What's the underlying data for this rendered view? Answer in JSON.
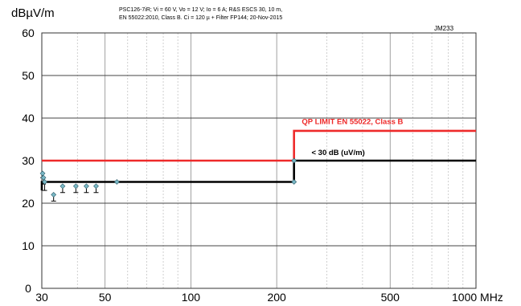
{
  "header": {
    "ylabel": "dBµV/m",
    "subtitle_line1": "PSC126-7iR; Vi = 60 V, Vo = 12 V; Io = 6 A; R&S ESCS 30, 10 m,",
    "subtitle_line2": "EN 55022:2010, Class B. Ci = 120 µ + Filter FP144; 20-Nov-2015",
    "reference": "JM233"
  },
  "chart_data": {
    "type": "scatter",
    "ylabel": "dBµV/m",
    "xlabel_unit": "MHz",
    "x_scale": "log",
    "xlim": [
      30,
      1000
    ],
    "ylim": [
      0,
      60
    ],
    "x_ticks": [
      30,
      50,
      100,
      200,
      500,
      1000
    ],
    "x_tick_labels": [
      "30",
      "50",
      "100",
      "200",
      "500",
      "1000 MHz"
    ],
    "y_ticks": [
      0,
      10,
      20,
      30,
      40,
      50,
      60
    ],
    "y_tick_labels": [
      "0",
      "10",
      "20",
      "30",
      "40",
      "50",
      "60"
    ],
    "grid": true,
    "colors": {
      "limit": "#ee2a2a",
      "threshold": "#000000",
      "points": "#7ab8c6"
    },
    "limit_line": {
      "name": "QP LIMIT  EN 55022,  Class B",
      "points": [
        [
          30,
          30
        ],
        [
          230,
          30
        ],
        [
          230,
          37
        ],
        [
          1000,
          37
        ]
      ]
    },
    "threshold_line": {
      "name": "< 30 dB (uV/m)",
      "points": [
        [
          30,
          23
        ],
        [
          30,
          25
        ],
        [
          55,
          25
        ],
        [
          230,
          25
        ],
        [
          230,
          30
        ],
        [
          1000,
          30
        ]
      ]
    },
    "series": [
      {
        "points": [
          {
            "x": 30.2,
            "y": 27,
            "lo": 26
          },
          {
            "x": 30.4,
            "y": 26,
            "lo": 24.5
          },
          {
            "x": 30.7,
            "y": 25,
            "lo": 23
          },
          {
            "x": 33,
            "y": 22,
            "lo": 20.5
          },
          {
            "x": 35.5,
            "y": 24,
            "lo": 22.5
          },
          {
            "x": 39.5,
            "y": 24,
            "lo": 22.5
          },
          {
            "x": 43,
            "y": 24,
            "lo": 22.5
          },
          {
            "x": 46.5,
            "y": 24,
            "lo": 22.5
          },
          {
            "x": 55,
            "y": 25,
            "lo": null
          },
          {
            "x": 230,
            "y": 25,
            "lo": null
          },
          {
            "x": 230,
            "y": 30,
            "lo": null
          }
        ]
      }
    ]
  }
}
